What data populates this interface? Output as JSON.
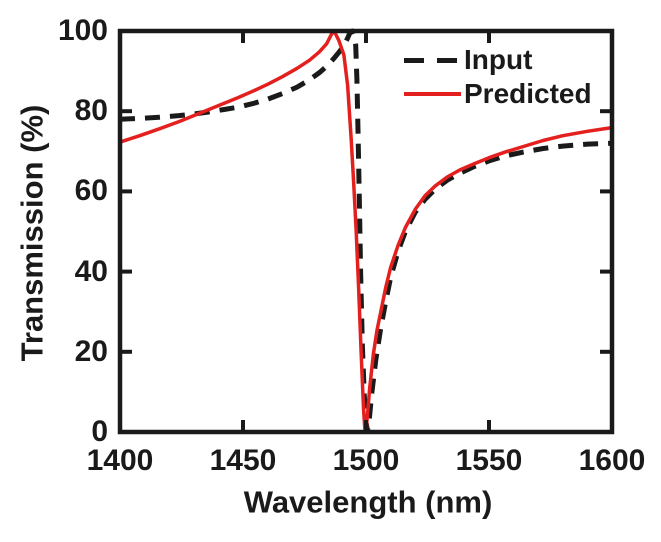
{
  "chart_data": {
    "type": "line",
    "title": "",
    "xlabel": "Wavelength (nm)",
    "ylabel": "Transmission (%)",
    "xlim": [
      1400,
      1600
    ],
    "ylim": [
      0,
      100
    ],
    "xticks": [
      1400,
      1450,
      1500,
      1550,
      1600
    ],
    "yticks": [
      0,
      20,
      40,
      60,
      80,
      100
    ],
    "xtick_labels": [
      "1400",
      "1450",
      "1500",
      "1550",
      "1600"
    ],
    "ytick_labels": [
      "0",
      "20",
      "40",
      "60",
      "80",
      "100"
    ],
    "grid": false,
    "box": true,
    "axis_color": "#1a1a1a",
    "legend_position": "top-right-inside",
    "series": [
      {
        "name": "Input",
        "style": "dashed",
        "color": "#1a1a1a",
        "line_width": 5,
        "points": [
          [
            1400,
            78
          ],
          [
            1408,
            78.2
          ],
          [
            1416,
            78.5
          ],
          [
            1424,
            78.9
          ],
          [
            1430,
            79.3
          ],
          [
            1436,
            79.8
          ],
          [
            1442,
            80.4
          ],
          [
            1448,
            81
          ],
          [
            1454,
            81.9
          ],
          [
            1460,
            83
          ],
          [
            1466,
            84.4
          ],
          [
            1472,
            86
          ],
          [
            1477,
            87.8
          ],
          [
            1481,
            89.6
          ],
          [
            1484,
            91.2
          ],
          [
            1487,
            93.2
          ],
          [
            1489,
            94.7
          ],
          [
            1491,
            96.3
          ],
          [
            1492.5,
            98.2
          ],
          [
            1493.5,
            99.6
          ],
          [
            1494.5,
            100
          ],
          [
            1495.3,
            98.8
          ],
          [
            1495.8,
            96.5
          ],
          [
            1496.3,
            88
          ],
          [
            1496.8,
            74
          ],
          [
            1497.3,
            57
          ],
          [
            1497.8,
            40
          ],
          [
            1498.5,
            22
          ],
          [
            1499.3,
            9
          ],
          [
            1500,
            2.5
          ],
          [
            1500.6,
            0.3
          ],
          [
            1501.4,
            3.5
          ],
          [
            1502.3,
            9.5
          ],
          [
            1504,
            18
          ],
          [
            1506,
            26
          ],
          [
            1508,
            32.5
          ],
          [
            1510,
            38.5
          ],
          [
            1513,
            45
          ],
          [
            1516,
            50
          ],
          [
            1520,
            54.8
          ],
          [
            1524,
            58
          ],
          [
            1528,
            60.5
          ],
          [
            1533,
            62.8
          ],
          [
            1538,
            64.5
          ],
          [
            1544,
            66.2
          ],
          [
            1550,
            67.6
          ],
          [
            1557,
            68.9
          ],
          [
            1564,
            69.8
          ],
          [
            1572,
            70.7
          ],
          [
            1580,
            71.3
          ],
          [
            1590,
            71.8
          ],
          [
            1600,
            72
          ]
        ]
      },
      {
        "name": "Predicted",
        "style": "solid",
        "color": "#e4201f",
        "line_width": 3.5,
        "points": [
          [
            1400,
            72.3
          ],
          [
            1408,
            73.9
          ],
          [
            1416,
            75.6
          ],
          [
            1424,
            77.4
          ],
          [
            1430,
            78.9
          ],
          [
            1436,
            80.4
          ],
          [
            1442,
            81.9
          ],
          [
            1448,
            83.4
          ],
          [
            1454,
            85
          ],
          [
            1460,
            86.7
          ],
          [
            1466,
            88.6
          ],
          [
            1472,
            90.7
          ],
          [
            1477,
            92.7
          ],
          [
            1481,
            94.8
          ],
          [
            1484,
            96.8
          ],
          [
            1485.5,
            98.6
          ],
          [
            1486.5,
            99.8
          ],
          [
            1487.5,
            99.4
          ],
          [
            1489,
            97.6
          ],
          [
            1491,
            94
          ],
          [
            1492.5,
            86.5
          ],
          [
            1494,
            73
          ],
          [
            1495,
            62
          ],
          [
            1496,
            50
          ],
          [
            1497,
            36
          ],
          [
            1498,
            20
          ],
          [
            1499,
            6
          ],
          [
            1499.5,
            0.8
          ],
          [
            1500,
            0.2
          ],
          [
            1500.7,
            5
          ],
          [
            1501.5,
            11
          ],
          [
            1503,
            19.5
          ],
          [
            1504.5,
            25.5
          ],
          [
            1506,
            30
          ],
          [
            1508,
            36
          ],
          [
            1510,
            41
          ],
          [
            1513,
            46.5
          ],
          [
            1516,
            51
          ],
          [
            1520,
            55.5
          ],
          [
            1524,
            58.9
          ],
          [
            1528,
            61.3
          ],
          [
            1533,
            63.6
          ],
          [
            1538,
            65.3
          ],
          [
            1544,
            66.9
          ],
          [
            1550,
            68.4
          ],
          [
            1557,
            69.9
          ],
          [
            1564,
            71.2
          ],
          [
            1572,
            72.7
          ],
          [
            1580,
            73.9
          ],
          [
            1590,
            75
          ],
          [
            1600,
            75.9
          ]
        ]
      }
    ]
  }
}
